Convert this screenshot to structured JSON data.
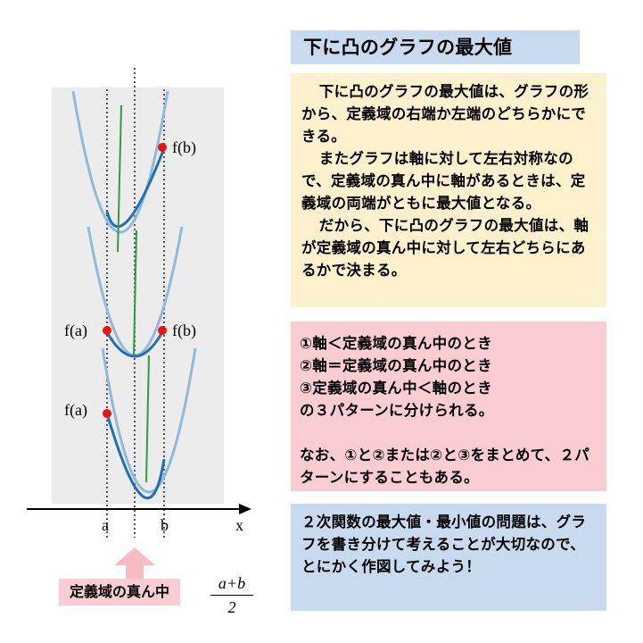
{
  "title": "下に凸のグラフの最大値",
  "explanation": [
    "下に凸のグラフの最大値は、グラフの形から、定義域の右端か左端のどちらかにできる。",
    "またグラフは軸に対して左右対称なので、定義域の真ん中に軸があるときは、定義域の両端がともに最大値となる。",
    "だから、下に凸のグラフの最大値は、軸が定義域の真ん中に対して左右どちらにあるかで決まる。"
  ],
  "patterns": {
    "lines": [
      "①軸＜定義域の真ん中のとき",
      "②軸＝定義域の真ん中のとき",
      "③定義域の真ん中＜軸のとき",
      "の３パターンに分けられる。"
    ],
    "note": "なお、①と②または②と③をまとめて、２パターンにすることもある。"
  },
  "advice": "２次関数の最大値・最小値の問題は、グラフを書き分けて考えることが大切なので、とにかく作図してみよう！",
  "diagram": {
    "case1_label": "f(b)",
    "case2_label_left": "f(a)",
    "case2_label_right": "f(b)",
    "case3_label": "f(a)",
    "x_label_a": "a",
    "x_label_b": "b",
    "axis_label": "x",
    "midpoint_label": "定義域の真ん中",
    "fraction_numerator": "a+b",
    "fraction_denominator": "2"
  },
  "colors": {
    "title_bg": "#c7daee",
    "explanation_bg": "#fdf0cc",
    "patterns_bg": "#f9cdd1",
    "advice_bg": "#c7daee",
    "domain_band": "#ececec",
    "curve_light": "#8fb9dd",
    "curve_dark": "#1f6fb8",
    "axis_line": "#2e9e3e",
    "point": "#ee1111",
    "arrow": "#f6bcc2"
  }
}
